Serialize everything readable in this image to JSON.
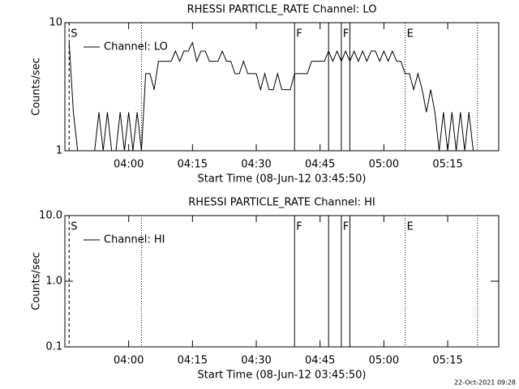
{
  "chart_data": [
    {
      "type": "line",
      "title": "RHESSI PARTICLE_RATE Channel: LO",
      "xlabel": "Start Time (08-Jun-12 03:45:50)",
      "ylabel": "Counts/sec",
      "ylog": true,
      "ylim": [
        1,
        10
      ],
      "yticks": [
        1,
        10
      ],
      "xlim": [
        "03:45",
        "05:27"
      ],
      "xticks": [
        "04:00",
        "04:15",
        "04:30",
        "04:45",
        "05:00",
        "05:15"
      ],
      "legend": "upper left",
      "series": [
        {
          "name": "Channel: LO",
          "color": "#000000",
          "x": [
            "03:46",
            "03:47",
            "03:48",
            "03:49",
            "03:50",
            "03:51",
            "03:52",
            "03:53",
            "03:54",
            "03:55",
            "03:56",
            "03:57",
            "03:58",
            "03:59",
            "04:00",
            "04:01",
            "04:02",
            "04:03",
            "04:04",
            "04:05",
            "04:06",
            "04:07",
            "04:08",
            "04:09",
            "04:10",
            "04:11",
            "04:12",
            "04:13",
            "04:14",
            "04:15",
            "04:16",
            "04:17",
            "04:18",
            "04:19",
            "04:20",
            "04:21",
            "04:22",
            "04:23",
            "04:24",
            "04:25",
            "04:26",
            "04:27",
            "04:28",
            "04:29",
            "04:30",
            "04:31",
            "04:32",
            "04:33",
            "04:34",
            "04:35",
            "04:36",
            "04:37",
            "04:38",
            "04:39",
            "04:40",
            "04:41",
            "04:42",
            "04:43",
            "04:44",
            "04:45",
            "04:46",
            "04:47",
            "04:48",
            "04:49",
            "04:50",
            "04:51",
            "04:52",
            "04:53",
            "04:54",
            "04:55",
            "04:56",
            "04:57",
            "04:58",
            "04:59",
            "05:00",
            "05:01",
            "05:02",
            "05:03",
            "05:04",
            "05:05",
            "05:06",
            "05:07",
            "05:08",
            "05:09",
            "05:10",
            "05:11",
            "05:12",
            "05:13",
            "05:14",
            "05:15",
            "05:16",
            "05:17",
            "05:18",
            "05:19",
            "05:20",
            "05:21"
          ],
          "values": [
            7,
            2,
            1,
            1,
            1,
            1,
            1,
            2,
            1,
            2,
            1,
            1,
            2,
            1,
            2,
            1,
            2,
            1,
            4,
            4,
            3,
            5,
            5,
            5,
            5,
            6,
            5,
            6,
            6,
            7,
            5,
            6,
            6,
            5,
            5,
            5,
            6,
            5,
            5,
            4,
            4,
            5,
            4,
            4,
            4,
            3,
            4,
            3,
            3,
            4,
            3,
            3,
            3,
            4,
            4,
            4,
            4,
            5,
            5,
            5,
            5,
            6,
            5,
            6,
            5,
            6,
            5,
            6,
            5,
            6,
            5,
            6,
            6,
            5,
            6,
            5,
            6,
            5,
            5,
            4,
            4,
            3,
            4,
            3,
            2,
            3,
            2,
            1,
            2,
            1,
            2,
            1,
            2,
            1,
            2,
            1
          ]
        }
      ],
      "flags": [
        {
          "x": "03:46",
          "label": "S",
          "style": "dashed"
        },
        {
          "x": "04:03",
          "style": "dotted"
        },
        {
          "x": "04:39",
          "label": "F",
          "style": "solid"
        },
        {
          "x": "04:47",
          "style": "solid"
        },
        {
          "x": "04:50",
          "label": "F",
          "style": "solid"
        },
        {
          "x": "04:52",
          "style": "solid"
        },
        {
          "x": "05:05",
          "label": "E",
          "style": "dotted"
        },
        {
          "x": "05:22",
          "style": "dotted"
        }
      ]
    },
    {
      "type": "line",
      "title": "RHESSI PARTICLE_RATE Channel: HI",
      "xlabel": "Start Time (08-Jun-12 03:45:50)",
      "ylabel": "Counts/sec",
      "ylog": true,
      "ylim": [
        0.1,
        10
      ],
      "yticks": [
        0.1,
        {
          "value": 1,
          "label": "1.0"
        },
        {
          "value": 10,
          "label": "10.0"
        }
      ],
      "xlim": [
        "03:45",
        "05:27"
      ],
      "xticks": [
        "04:00",
        "04:15",
        "04:30",
        "04:45",
        "05:00",
        "05:15"
      ],
      "legend": "upper left",
      "series": [
        {
          "name": "Channel: HI",
          "color": "#000000",
          "x": [],
          "values": []
        }
      ],
      "flags": [
        {
          "x": "03:46",
          "label": "S",
          "style": "dashed"
        },
        {
          "x": "04:03",
          "style": "dotted"
        },
        {
          "x": "04:39",
          "label": "F",
          "style": "solid"
        },
        {
          "x": "04:47",
          "style": "solid"
        },
        {
          "x": "04:50",
          "label": "F",
          "style": "solid"
        },
        {
          "x": "04:52",
          "style": "solid"
        },
        {
          "x": "05:05",
          "label": "E",
          "style": "dotted"
        },
        {
          "x": "05:22",
          "style": "dotted"
        }
      ]
    }
  ],
  "footer": "22-Oct-2021 09:28"
}
